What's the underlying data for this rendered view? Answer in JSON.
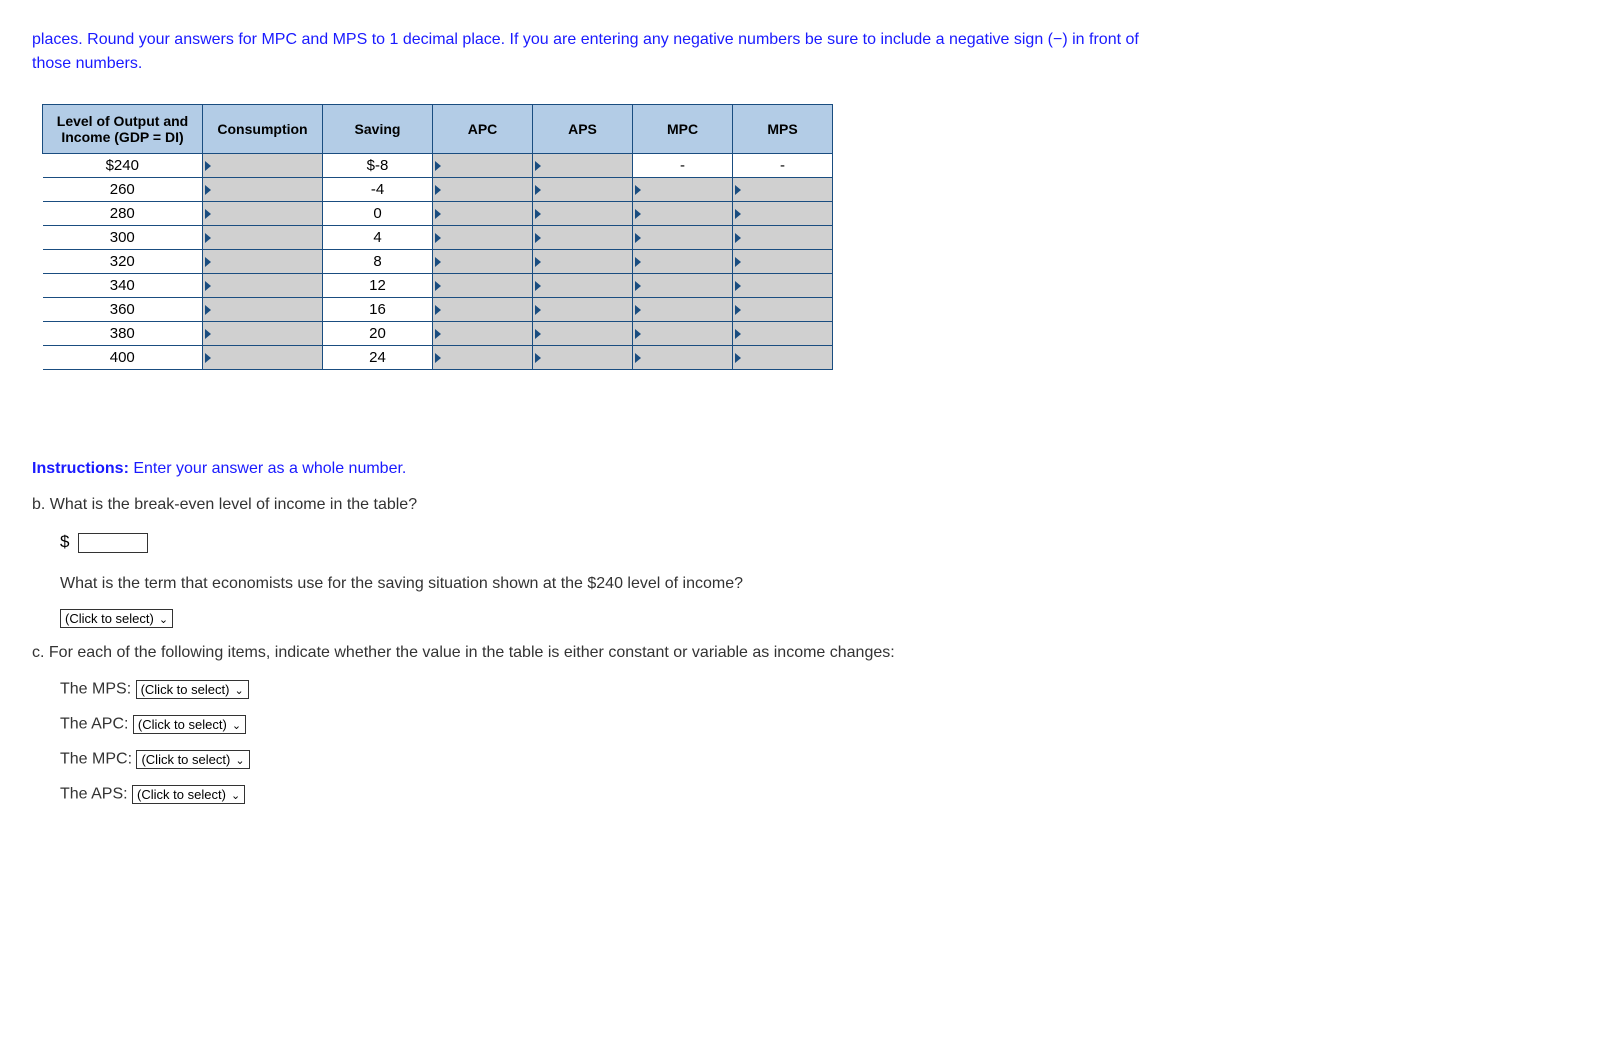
{
  "intro": "places. Round your answers for MPC and MPS to 1 decimal place. If you are entering any negative numbers be sure to include a negative sign (−) in front of those numbers.",
  "table": {
    "headers": {
      "level": "Level of Output and Income (GDP = DI)",
      "consumption": "Consumption",
      "saving": "Saving",
      "apc": "APC",
      "aps": "APS",
      "mpc": "MPC",
      "mps": "MPS"
    },
    "rows": [
      {
        "level": "$240",
        "saving": "$-8",
        "mpc": "-",
        "mps": "-"
      },
      {
        "level": "260",
        "saving": "-4"
      },
      {
        "level": "280",
        "saving": "0"
      },
      {
        "level": "300",
        "saving": "4"
      },
      {
        "level": "320",
        "saving": "8"
      },
      {
        "level": "340",
        "saving": "12"
      },
      {
        "level": "360",
        "saving": "16"
      },
      {
        "level": "380",
        "saving": "20"
      },
      {
        "level": "400",
        "saving": "24"
      }
    ]
  },
  "instructions": {
    "label": "Instructions:",
    "text": " Enter your answer as a whole number."
  },
  "question_b": {
    "prompt": "b. What is the break-even level of income in the table?",
    "dollar": "$",
    "term_question": "What is the term that economists use for the saving situation shown at the $240 level of income?",
    "select_placeholder": "(Click to select)"
  },
  "question_c": {
    "prompt": "c. For each of the following items, indicate whether the value in the table is either constant or variable as income changes:",
    "items": [
      {
        "label": "The MPS:"
      },
      {
        "label": "The APC:"
      },
      {
        "label": "The MPC:"
      },
      {
        "label": "The APS:"
      }
    ],
    "select_placeholder": "(Click to select)"
  }
}
